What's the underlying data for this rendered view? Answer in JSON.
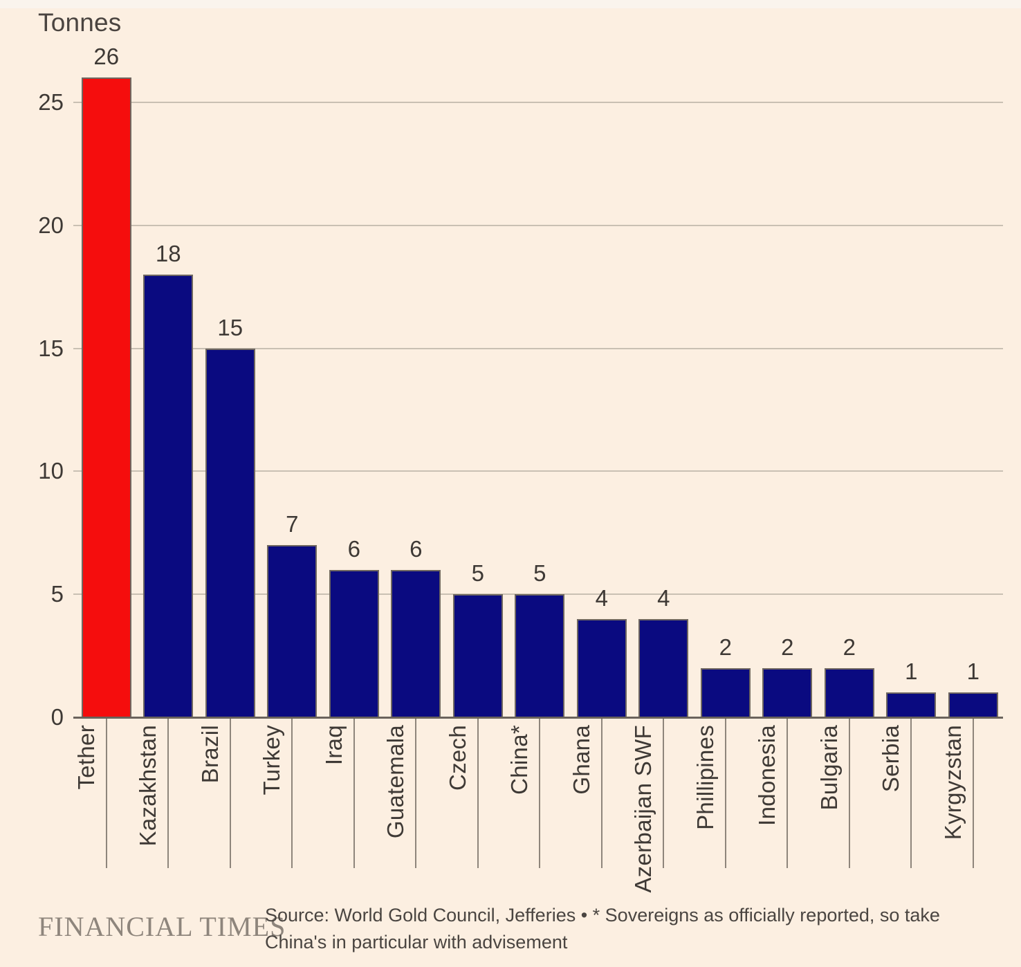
{
  "title": "Tonnes",
  "chart_data": {
    "type": "bar",
    "title": "Tonnes",
    "xlabel": "",
    "ylabel": "Tonnes",
    "categories": [
      "Tether",
      "Kazakhstan",
      "Brazil",
      "Turkey",
      "Iraq",
      "Guatemala",
      "Czech",
      "China*",
      "Ghana",
      "Azerbaijan SWF",
      "Phillipines",
      "Indonesia",
      "Bulgaria",
      "Serbia",
      "Kyrgyzstan"
    ],
    "values": [
      26,
      18,
      15,
      7,
      6,
      6,
      5,
      5,
      4,
      4,
      2,
      2,
      2,
      1,
      1
    ],
    "ylim": [
      0,
      26
    ],
    "yticks": [
      0,
      5,
      10,
      15,
      20,
      25
    ],
    "grid": "horizontal",
    "legend": "none",
    "value_labels": "above-bars",
    "highlight_category": "Tether",
    "colors": {
      "bar_default": "#0A0A80",
      "bar_highlight": "#F50D0D",
      "bar_border": "#6F6760",
      "background": "#FCEFE1",
      "gridline": "#C9C0B3",
      "axis_line": "#6A635C",
      "tick_line": "#8E857B",
      "text": "#3E3935"
    }
  },
  "footer": {
    "brand": "FINANCIAL TIMES",
    "source": "Source: World Gold Council, Jefferies • * Sovereigns as officially reported, so take China's in particular with advisement"
  }
}
